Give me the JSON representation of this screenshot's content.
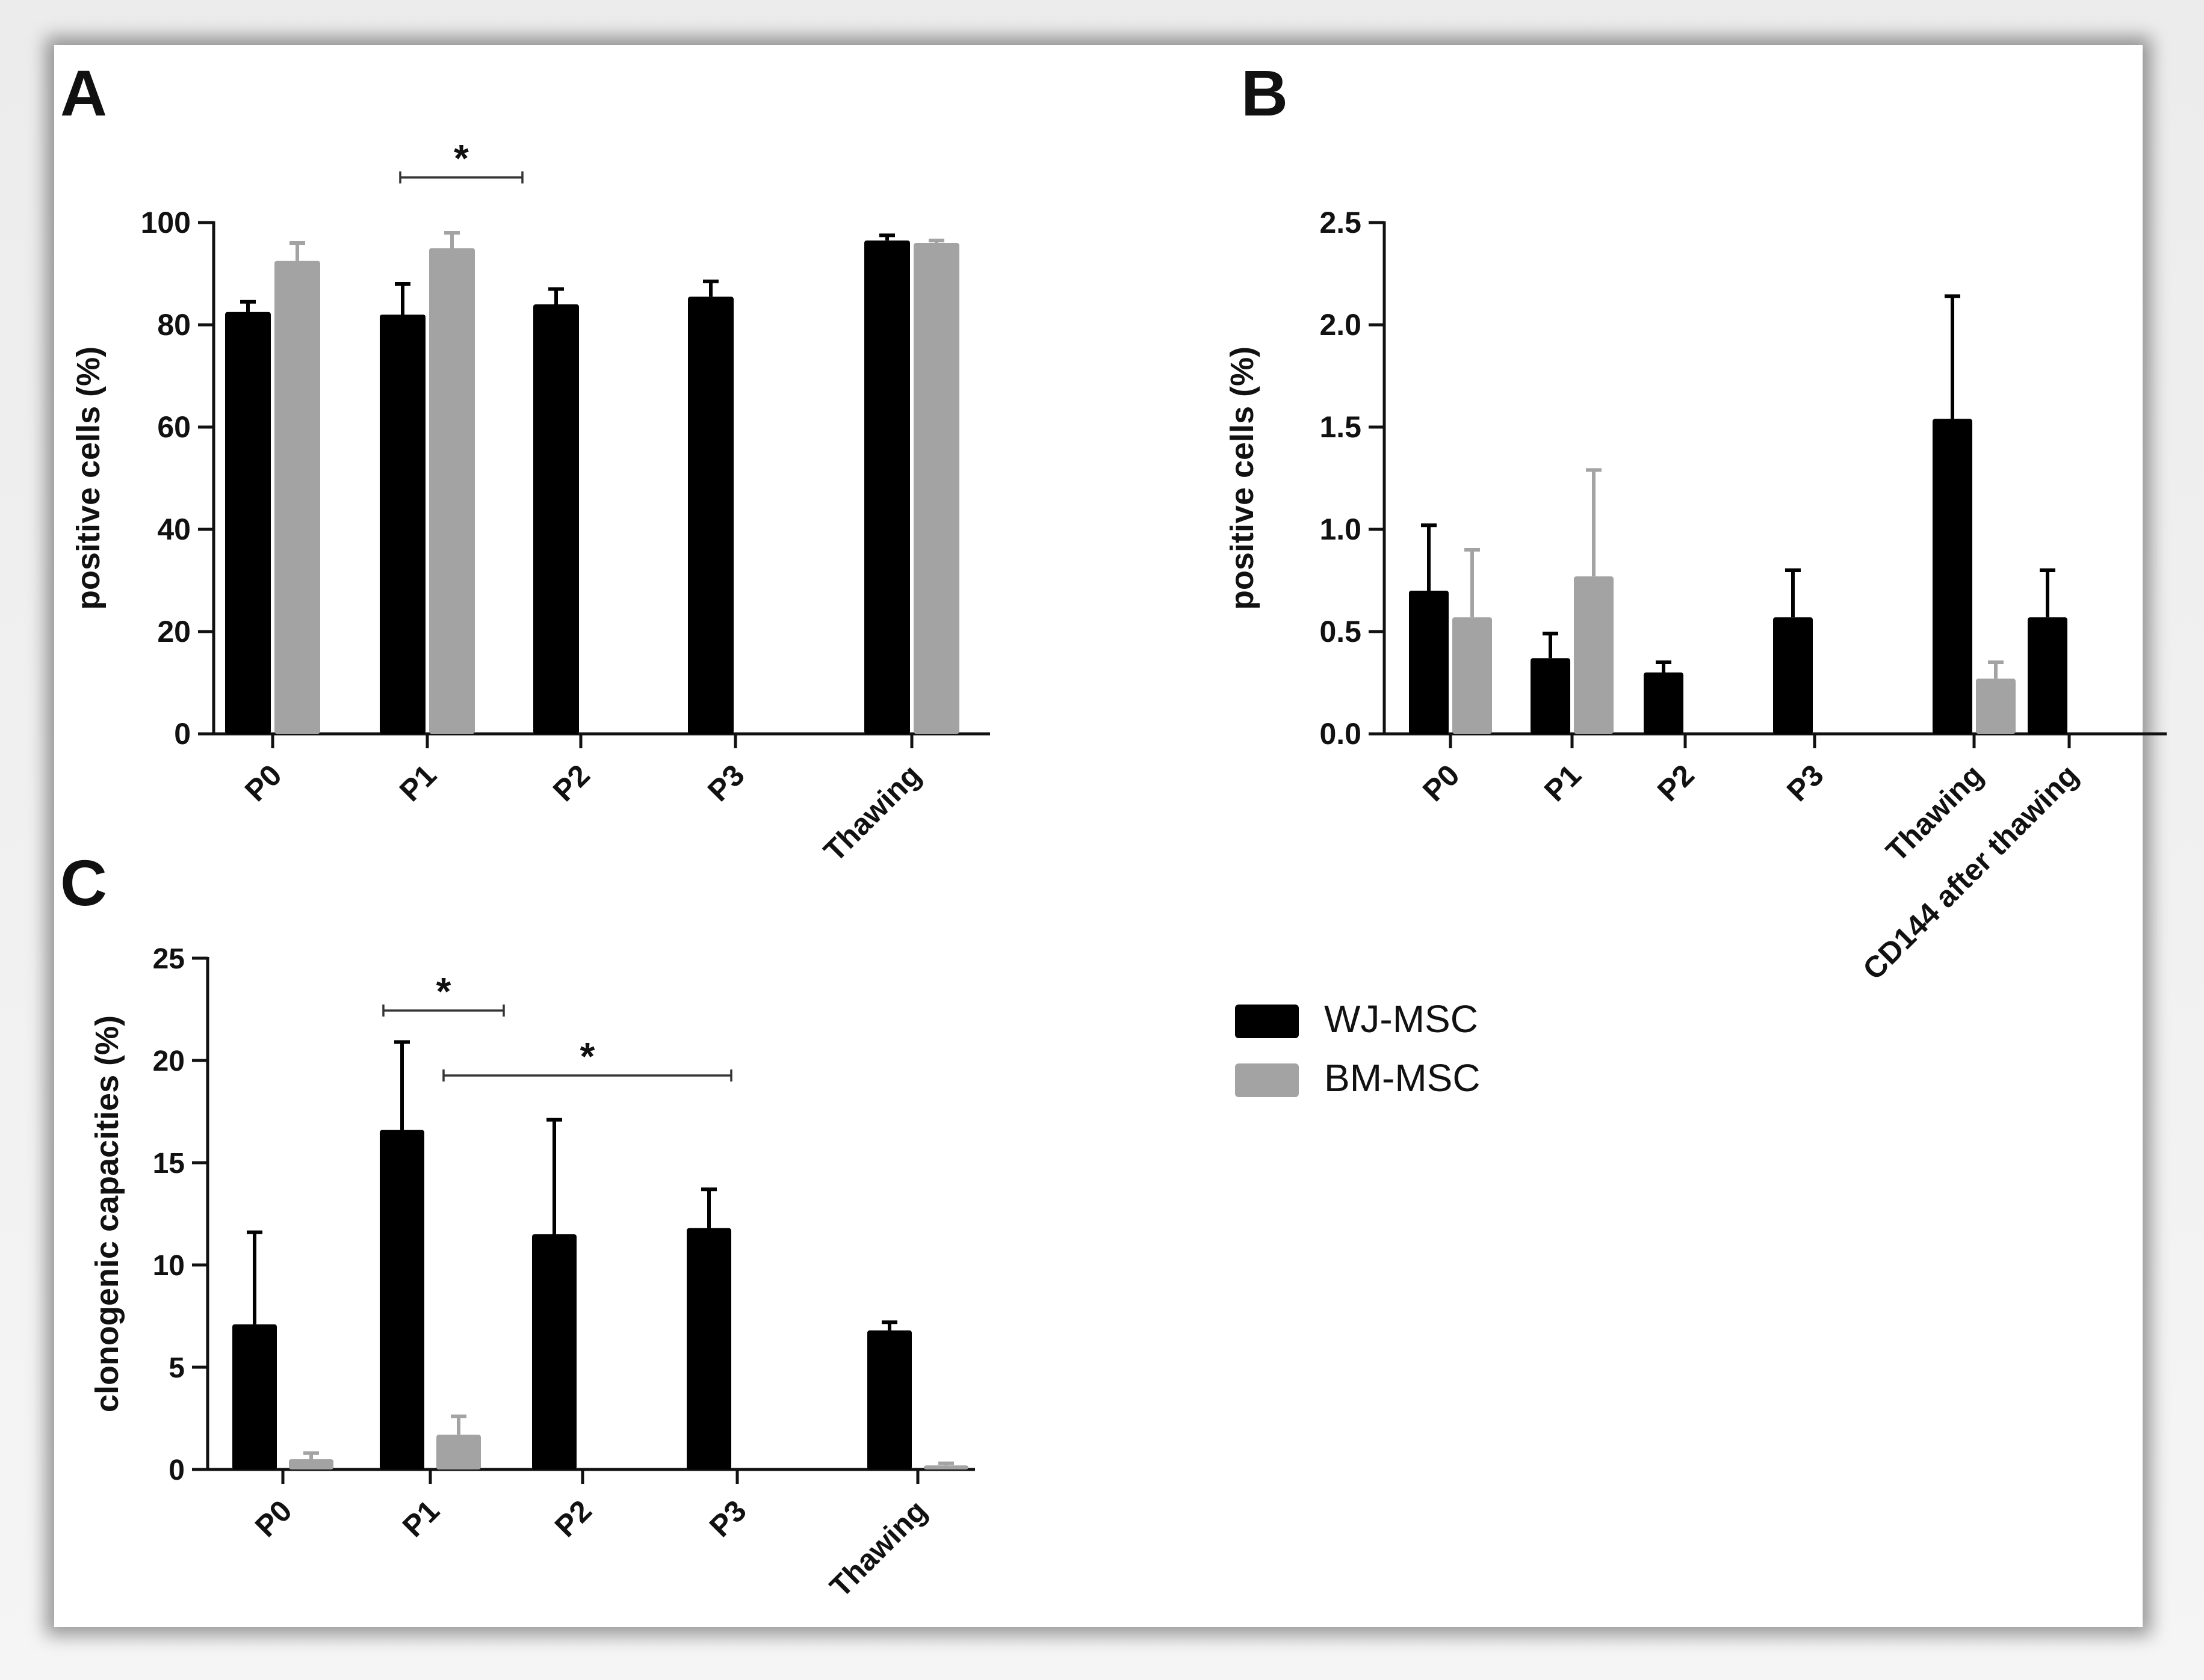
{
  "colors": {
    "wj": "#000000",
    "bm": "#a3a3a3",
    "axis": "#111111"
  },
  "legend": [
    {
      "name": "WJ-MSC",
      "color": "#000000"
    },
    {
      "name": "BM-MSC",
      "color": "#a3a3a3"
    }
  ],
  "chart_data": [
    {
      "panel": "A",
      "type": "bar",
      "ylabel": "positive cells (%)",
      "ylim": [
        0,
        100
      ],
      "yticks": [
        "0",
        "20",
        "40",
        "60",
        "80",
        "100"
      ],
      "categories": [
        "P0",
        "P1",
        "P2",
        "P3",
        "Thawing"
      ],
      "series": [
        {
          "name": "WJ-MSC",
          "values": [
            82.5,
            82,
            84,
            85.5,
            96.5
          ],
          "errors": [
            2,
            6,
            3,
            3,
            1
          ]
        },
        {
          "name": "BM-MSC",
          "values": [
            92.5,
            95,
            null,
            null,
            96
          ],
          "errors": [
            3.5,
            3,
            null,
            null,
            0.5
          ]
        }
      ],
      "annotations": [
        {
          "text": "*",
          "from": "P1-WJ-MSC",
          "to": "P1-BM-MSC"
        }
      ]
    },
    {
      "panel": "B",
      "type": "bar",
      "ylabel": "positive cells (%)",
      "ylim": [
        0,
        2.5
      ],
      "yticks": [
        "0.0",
        "0.5",
        "1.0",
        "1.5",
        "2.0",
        "2.5"
      ],
      "categories": [
        "P0",
        "P1",
        "P2",
        "P3",
        "Thawing",
        "CD144 after thawing"
      ],
      "series": [
        {
          "name": "WJ-MSC",
          "values": [
            0.7,
            0.37,
            0.3,
            0.57,
            1.54,
            0.57
          ],
          "errors": [
            0.32,
            0.12,
            0.05,
            0.23,
            0.6,
            0.23
          ]
        },
        {
          "name": "BM-MSC",
          "values": [
            0.57,
            0.77,
            null,
            null,
            0.27,
            null
          ],
          "errors": [
            0.33,
            0.52,
            null,
            null,
            0.08,
            null
          ]
        }
      ],
      "annotations": []
    },
    {
      "panel": "C",
      "type": "bar",
      "ylabel": "clonogenic capacities (%)",
      "ylim": [
        0,
        25
      ],
      "yticks": [
        "0",
        "5",
        "10",
        "15",
        "20",
        "25"
      ],
      "categories": [
        "P0",
        "P1",
        "P2",
        "P3",
        "Thawing"
      ],
      "series": [
        {
          "name": "WJ-MSC",
          "values": [
            7.1,
            16.6,
            11.5,
            11.8,
            6.8
          ],
          "errors": [
            4.5,
            4.3,
            5.6,
            1.9,
            0.4
          ]
        },
        {
          "name": "BM-MSC",
          "values": [
            0.5,
            1.7,
            null,
            null,
            0.2
          ],
          "errors": [
            0.3,
            0.9,
            null,
            null,
            0.1
          ]
        }
      ],
      "annotations": [
        {
          "text": "*",
          "from": "P1-WJ-MSC",
          "to": "P1-BM-MSC"
        },
        {
          "text": "*",
          "from": "P1",
          "to": "P3"
        }
      ]
    }
  ]
}
